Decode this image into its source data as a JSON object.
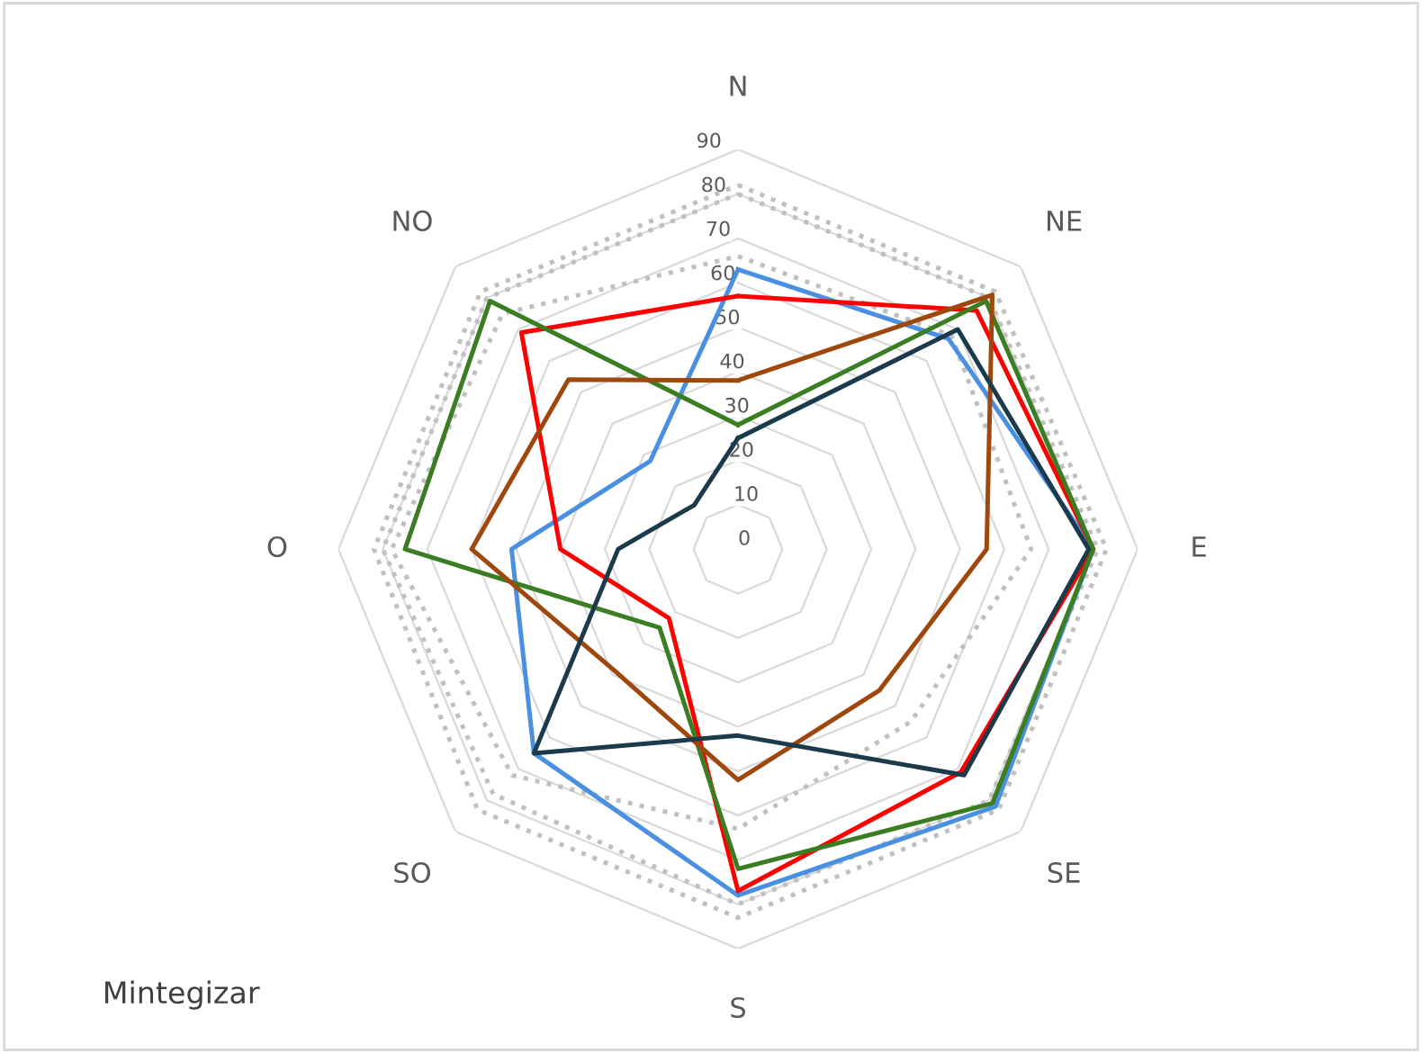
{
  "chart_data": {
    "type": "radar",
    "categories": [
      "N",
      "NE",
      "E",
      "SE",
      "S",
      "SO",
      "O",
      "NO"
    ],
    "ylim": [
      0,
      90
    ],
    "yticks": [
      0,
      10,
      20,
      30,
      40,
      50,
      60,
      70,
      80,
      90
    ],
    "grid": true,
    "marker": "none",
    "series": [
      {
        "color": "#c0c0c0",
        "line_style": "dotted",
        "values": [
          82,
          82,
          83,
          83,
          83,
          83,
          82,
          82
        ]
      },
      {
        "color": "#c0c0c0",
        "line_style": "dotted",
        "values": [
          80,
          80,
          81,
          80,
          80,
          78,
          80,
          80
        ]
      },
      {
        "color": "#c0c0c0",
        "line_style": "dotted",
        "values": [
          66,
          68,
          66,
          55,
          63,
          72,
          78,
          75
        ]
      },
      {
        "color": "#4a90e2",
        "line_style": "solid",
        "values": [
          63,
          67,
          80,
          82,
          78,
          65,
          51,
          28
        ]
      },
      {
        "color": "#ff0000",
        "line_style": "solid",
        "values": [
          57,
          76,
          80,
          71,
          77,
          22,
          40,
          69
        ]
      },
      {
        "color": "#3a7d22",
        "line_style": "solid",
        "values": [
          28,
          79,
          80,
          81,
          72,
          25,
          75,
          79
        ]
      },
      {
        "color": "#9e480e",
        "line_style": "solid",
        "values": [
          38,
          81,
          56,
          45,
          52,
          39,
          60,
          54
        ]
      },
      {
        "color": "#1b3a4b",
        "line_style": "solid",
        "values": [
          25,
          70,
          79,
          72,
          42,
          65,
          27,
          14
        ]
      }
    ],
    "annotations": [
      "Mintegizar"
    ]
  }
}
